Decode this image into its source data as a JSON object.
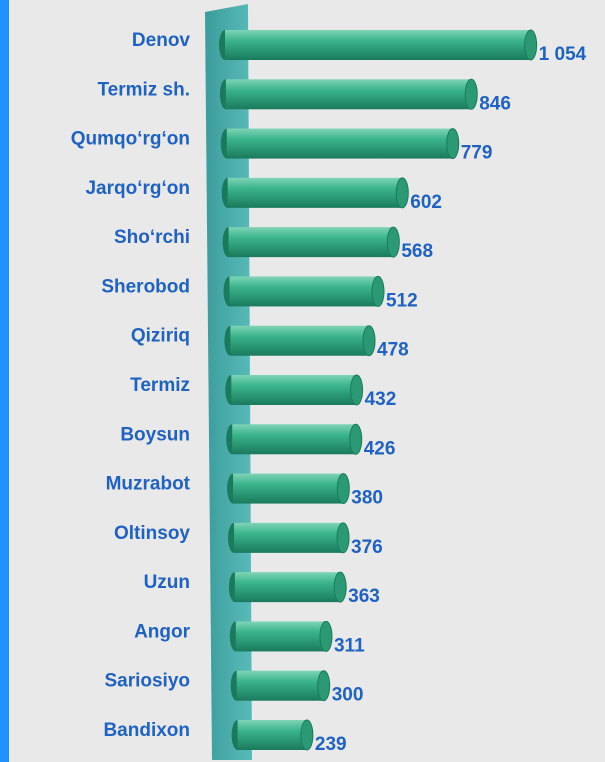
{
  "chart_data": {
    "type": "bar",
    "orientation": "horizontal",
    "categories": [
      "Denov",
      "Termiz sh.",
      "Qumqo‘rg‘on",
      "Jarqo‘rg‘on",
      "Sho‘rchi",
      "Sherobod",
      "Qiziriq",
      "Termiz",
      "Boysun",
      "Muzrabot",
      "Oltinsoy",
      "Uzun",
      "Angor",
      "Sariosiyo",
      "Bandixon"
    ],
    "values": [
      1054,
      846,
      779,
      602,
      568,
      512,
      478,
      432,
      426,
      380,
      376,
      363,
      311,
      300,
      239
    ],
    "value_labels": [
      "1 054",
      "846",
      "779",
      "602",
      "568",
      "512",
      "478",
      "432",
      "426",
      "380",
      "376",
      "363",
      "311",
      "300",
      "239"
    ],
    "color": "#2aa37e",
    "xlim": [
      0,
      1100
    ]
  }
}
